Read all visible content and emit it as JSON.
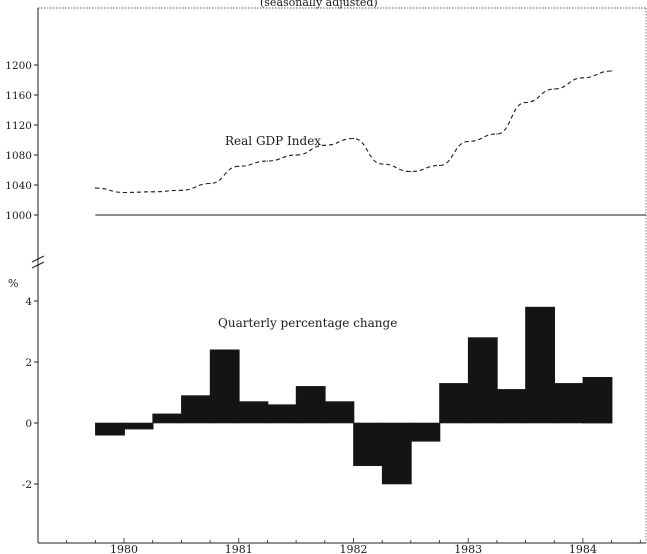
{
  "chart_data": [
    {
      "type": "line",
      "title": "(seasonally adjusted)",
      "series_label": "Real GDP Index",
      "ylim": [
        980,
        1220
      ],
      "yticks": [
        1000,
        1040,
        1080,
        1120,
        1160,
        1200
      ],
      "reference_value": 1000,
      "x": [
        1979.75,
        1980.0,
        1980.25,
        1980.5,
        1980.75,
        1981.0,
        1981.25,
        1981.5,
        1981.75,
        1982.0,
        1982.25,
        1982.5,
        1982.75,
        1983.0,
        1983.25,
        1983.5,
        1983.75,
        1984.0,
        1984.25
      ],
      "values": [
        1036,
        1030,
        1031,
        1033,
        1042,
        1065,
        1072,
        1080,
        1093,
        1102,
        1068,
        1058,
        1066,
        1098,
        1108,
        1150,
        1168,
        1183,
        1192
      ]
    },
    {
      "type": "bar",
      "label": "Quarterly percentage change",
      "ylabel": "%",
      "ylim": [
        -4,
        5
      ],
      "yticks": [
        -2,
        0,
        2,
        4
      ],
      "x_start": [
        1979.75,
        1980.0,
        1980.25,
        1980.5,
        1980.75,
        1981.0,
        1981.25,
        1981.5,
        1981.75,
        1982.0,
        1982.25,
        1982.5,
        1982.75,
        1983.0,
        1983.25,
        1983.5,
        1983.75,
        1984.0
      ],
      "values": [
        -0.4,
        -0.2,
        0.3,
        0.9,
        2.4,
        0.7,
        0.6,
        1.2,
        0.7,
        -1.4,
        -2.0,
        -0.6,
        1.3,
        2.8,
        1.1,
        3.8,
        1.3,
        1.5
      ]
    }
  ],
  "x_axis": {
    "range": [
      1979.25,
      1984.55
    ],
    "tick_labels": [
      "1980",
      "1981",
      "1982",
      "1983",
      "1984"
    ],
    "tick_positions": [
      1980.0,
      1981.0,
      1982.0,
      1983.0,
      1984.0
    ]
  },
  "colors": {
    "bar": "#141414",
    "line": "#1a1a1a",
    "axis": "#222222"
  }
}
